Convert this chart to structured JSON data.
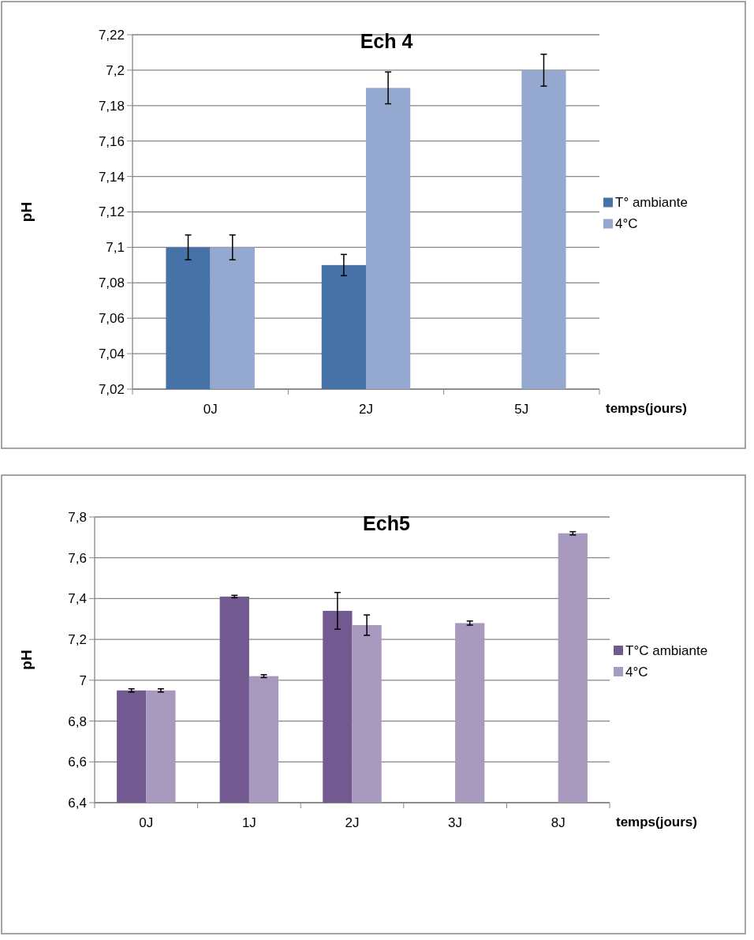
{
  "chart_data": [
    {
      "type": "bar",
      "title": "Ech 4",
      "xlabel": "temps(jours)",
      "ylabel": "pH",
      "categories": [
        "0J",
        "2J",
        "5J"
      ],
      "series": [
        {
          "name": "T° ambiante",
          "color": "#4672a7",
          "values": [
            7.1,
            7.09,
            null
          ],
          "errors": [
            0.007,
            0.006,
            null
          ]
        },
        {
          "name": "4°C",
          "color": "#95a9d0",
          "values": [
            7.1,
            7.19,
            7.2
          ],
          "errors": [
            0.007,
            0.009,
            0.009
          ]
        }
      ],
      "ylim": [
        7.02,
        7.22
      ],
      "yticks": [
        {
          "value": 7.02,
          "label": "7,02"
        },
        {
          "value": 7.04,
          "label": "7,04"
        },
        {
          "value": 7.06,
          "label": "7,06"
        },
        {
          "value": 7.08,
          "label": "7,08"
        },
        {
          "value": 7.1,
          "label": "7,1"
        },
        {
          "value": 7.12,
          "label": "7,12"
        },
        {
          "value": 7.14,
          "label": "7,14"
        },
        {
          "value": 7.16,
          "label": "7,16"
        },
        {
          "value": 7.18,
          "label": "7,18"
        },
        {
          "value": 7.2,
          "label": "7,2"
        },
        {
          "value": 7.22,
          "label": "7,22"
        }
      ],
      "grid": "y",
      "legend": "right"
    },
    {
      "type": "bar",
      "title": "Ech5",
      "xlabel": "temps(jours)",
      "ylabel": "pH",
      "categories": [
        "0J",
        "1J",
        "2J",
        "3J",
        "8J"
      ],
      "series": [
        {
          "name": "T°C ambiante",
          "color": "#72598f",
          "values": [
            6.95,
            7.41,
            7.34,
            null,
            null
          ],
          "errors": [
            0.008,
            0.006,
            0.09,
            null,
            null
          ]
        },
        {
          "name": "4°C",
          "color": "#a89abf",
          "values": [
            6.95,
            7.02,
            7.27,
            7.28,
            7.72
          ],
          "errors": [
            0.008,
            0.007,
            0.05,
            0.01,
            0.008
          ]
        }
      ],
      "ylim": [
        6.4,
        7.8
      ],
      "yticks": [
        {
          "value": 6.4,
          "label": "6,4"
        },
        {
          "value": 6.6,
          "label": "6,6"
        },
        {
          "value": 6.8,
          "label": "6,8"
        },
        {
          "value": 7,
          "label": "7"
        },
        {
          "value": 7.2,
          "label": "7,2"
        },
        {
          "value": 7.4,
          "label": "7,4"
        },
        {
          "value": 7.6,
          "label": "7,6"
        },
        {
          "value": 7.8,
          "label": "7,8"
        }
      ],
      "grid": "y",
      "legend": "right"
    }
  ]
}
